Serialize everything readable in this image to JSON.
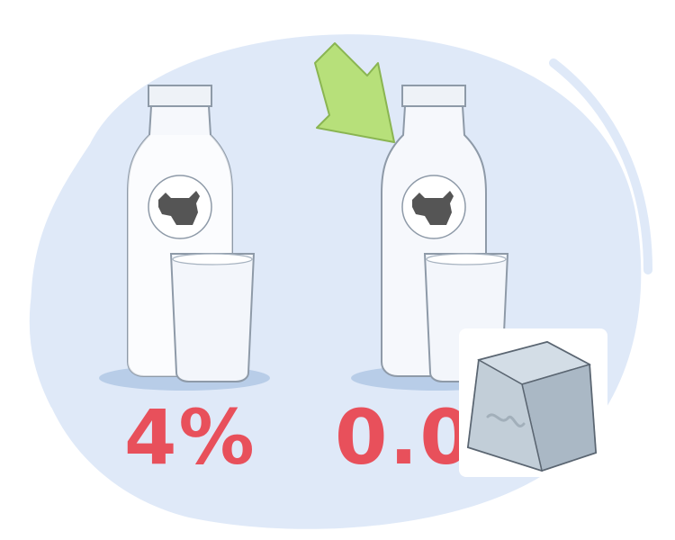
{
  "labels": {
    "left": "4%",
    "right": "0.0"
  },
  "colors": {
    "blob_background": "#dfe9f8",
    "label_fill": "#e8505b",
    "arrow_fill": "#b7e07a",
    "cow_silhouette": "#555555",
    "glass_fill": "#f3f6fb",
    "key_fill": "#b9c6d1"
  },
  "icons": {
    "arrow": "arrow-down-right-icon",
    "cow_left": "cow-icon",
    "cow_right": "cow-icon",
    "key_overlay": "keycap-icon"
  }
}
